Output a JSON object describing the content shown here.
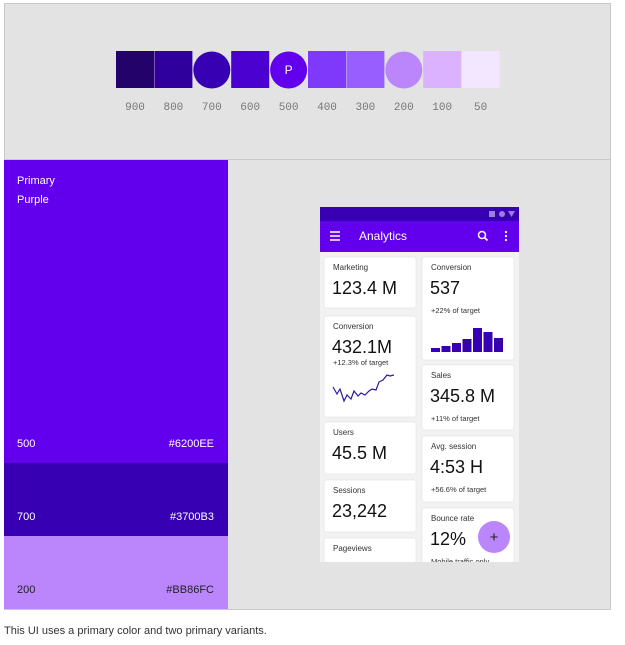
{
  "palette": {
    "swatches": [
      {
        "label": "900"
      },
      {
        "label": "800"
      },
      {
        "label": "700"
      },
      {
        "label": "600"
      },
      {
        "label": "500",
        "mark": "P"
      },
      {
        "label": "400"
      },
      {
        "label": "300"
      },
      {
        "label": "200"
      },
      {
        "label": "100"
      },
      {
        "label": "50"
      }
    ]
  },
  "panel": {
    "title": [
      "Primary",
      "Purple"
    ],
    "variants": [
      {
        "tone": "500",
        "hex": "#6200EE"
      },
      {
        "tone": "700",
        "hex": "#3700B3"
      },
      {
        "tone": "200",
        "hex": "#BB86FC"
      }
    ]
  },
  "app": {
    "title": "Analytics",
    "fab": "+",
    "cards": [
      {
        "label": "Marketing",
        "value": "123.4 M"
      },
      {
        "label": "Conversion",
        "value": "432.1M",
        "note": "+12.3% of target"
      },
      {
        "label": "Users",
        "value": "45.5 M"
      },
      {
        "label": "Sessions",
        "value": "23,242"
      },
      {
        "label": "Pageviews"
      },
      {
        "label": "Conversion",
        "value": "537",
        "note": "+22% of target"
      },
      {
        "label": "Sales",
        "value": "345.8 M",
        "note": "+11% of target"
      },
      {
        "label": "Avg. session",
        "value": "4:53 H",
        "note": "+56.6% of target"
      },
      {
        "label": "Bounce rate",
        "value": "12%",
        "note": "Mobile traffic only"
      }
    ]
  },
  "caption": "This UI uses a primary color and two primary variants."
}
